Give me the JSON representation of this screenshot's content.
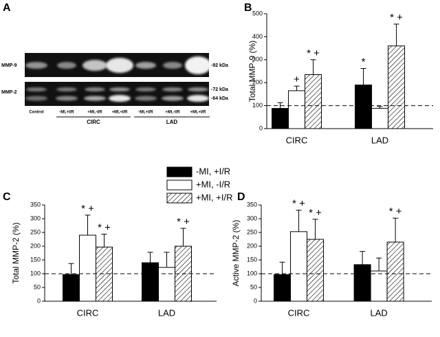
{
  "gel": {
    "panel_label": "A",
    "rows": [
      "MMP-9",
      "MMP-2"
    ],
    "markers": [
      "-92 kDa",
      "-72 kDa",
      "-64 kDa"
    ],
    "lanes": [
      "Control",
      "-MI,+I/R",
      "+MI,-I/R",
      "+MI,+I/R",
      "-MI,+I/R",
      "+MI,-I/R",
      "+MI,+I/R"
    ],
    "groups": [
      "CIRC",
      "LAD"
    ]
  },
  "chart_data": [
    {
      "type": "bar",
      "panel_label": "B",
      "y_label": "Total MMP-9 (%)",
      "categories": [
        "CIRC",
        "LAD"
      ],
      "ylim": [
        0,
        500
      ],
      "yticks": [
        0,
        100,
        200,
        300,
        400,
        500
      ],
      "reference_line": 100,
      "series": [
        {
          "name": "-MI, +I/R",
          "color": "#000000",
          "values": [
            88,
            190
          ],
          "errors": [
            25,
            72
          ],
          "annotations": [
            null,
            "*"
          ]
        },
        {
          "name": "+MI, -I/R",
          "color": "#ffffff",
          "values": [
            165,
            88
          ],
          "errors": [
            20,
            8
          ],
          "annotations": [
            "+",
            null
          ]
        },
        {
          "name": "+MI, +I/R",
          "color": "#ffffff",
          "hatch": true,
          "values": [
            235,
            360
          ],
          "errors": [
            65,
            95
          ],
          "annotations": [
            "* +",
            "* +"
          ]
        }
      ]
    },
    {
      "type": "bar",
      "panel_label": "C",
      "y_label": "Total MMP-2 (%)",
      "categories": [
        "CIRC",
        "LAD"
      ],
      "ylim": [
        0,
        350
      ],
      "yticks": [
        0,
        50,
        100,
        150,
        200,
        250,
        300,
        350
      ],
      "reference_line": 100,
      "series": [
        {
          "color": "#000000",
          "values": [
            97,
            140
          ],
          "errors": [
            40,
            38
          ],
          "annotations": [
            null,
            null
          ]
        },
        {
          "color": "#ffffff",
          "values": [
            240,
            123
          ],
          "errors": [
            73,
            55
          ],
          "annotations": [
            "* +",
            null
          ]
        },
        {
          "color": "#ffffff",
          "hatch": true,
          "values": [
            197,
            200
          ],
          "errors": [
            47,
            65
          ],
          "annotations": [
            "* +",
            "* +"
          ]
        }
      ]
    },
    {
      "type": "bar",
      "panel_label": "D",
      "y_label": "Active MMP-2 (%)",
      "categories": [
        "CIRC",
        "LAD"
      ],
      "ylim": [
        0,
        350
      ],
      "yticks": [
        0,
        50,
        100,
        150,
        200,
        250,
        300,
        350
      ],
      "reference_line": 100,
      "series": [
        {
          "color": "#000000",
          "values": [
            97,
            133
          ],
          "errors": [
            45,
            48
          ],
          "annotations": [
            null,
            null
          ]
        },
        {
          "color": "#ffffff",
          "values": [
            253,
            110
          ],
          "errors": [
            78,
            47
          ],
          "annotations": [
            "* +",
            null
          ]
        },
        {
          "color": "#ffffff",
          "hatch": true,
          "values": [
            225,
            215
          ],
          "errors": [
            73,
            87
          ],
          "annotations": [
            "* +",
            "* +"
          ]
        }
      ]
    }
  ]
}
